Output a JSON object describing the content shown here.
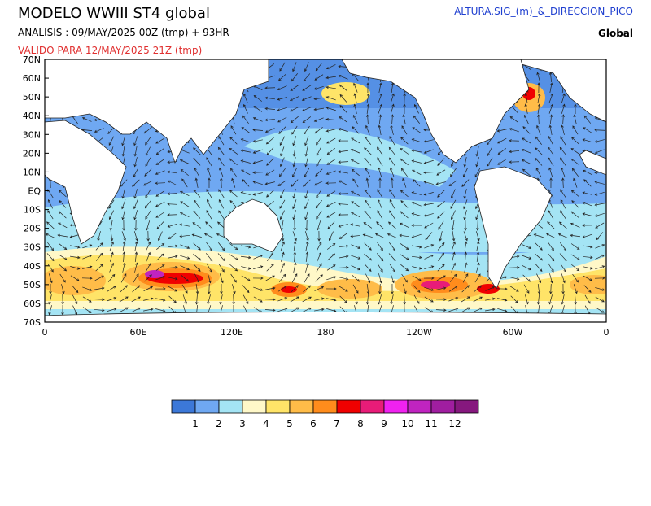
{
  "header": {
    "title": "MODELO  WWIII  ST4  global",
    "analysis": "ANALISIS : 09/MAY/2025 00Z  (tmp) + 93HR",
    "valid": "VALIDO PARA  12/MAY/2025 21Z  (tmp)",
    "variable": "ALTURA.SIG_(m)_&_DIRECCION_PICO",
    "region": "Global"
  },
  "map": {
    "lat_labels": [
      "70N",
      "60N",
      "50N",
      "40N",
      "30N",
      "20N",
      "10N",
      "EQ",
      "10S",
      "20S",
      "30S",
      "40S",
      "50S",
      "60S",
      "70S"
    ],
    "lon_labels": [
      "0",
      "60E",
      "120E",
      "180",
      "120W",
      "60W",
      "0"
    ]
  },
  "legend": {
    "colors": [
      "#3c78d8",
      "#6fa8f2",
      "#a4e4f4",
      "#fff8c8",
      "#ffe468",
      "#ffbc48",
      "#ff8c1c",
      "#f00000",
      "#e81c78",
      "#f022f0",
      "#c024c0",
      "#a01ea0",
      "#86187e"
    ],
    "labels": [
      "1",
      "2",
      "3",
      "4",
      "5",
      "6",
      "7",
      "8",
      "9",
      "10",
      "11",
      "12"
    ]
  }
}
